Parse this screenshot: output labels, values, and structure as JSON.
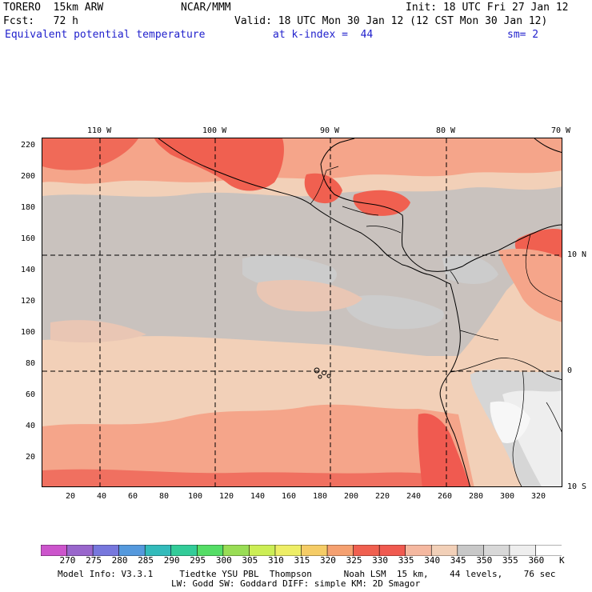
{
  "header": {
    "model": "TORERO  15km ARW",
    "center": "NCAR/MMM",
    "init": "Init: 18 UTC Fri 27 Jan 12",
    "fcst": "Fcst:   72 h",
    "valid": "Valid: 18 UTC Mon 30 Jan 12 (12 CST Mon 30 Jan 12)",
    "field": "Equivalent potential temperature",
    "level": "at k-index =  44",
    "smooth": "sm= 2"
  },
  "axes": {
    "top_lon_labels": [
      "110 W",
      "100 W",
      "90 W",
      "80 W",
      "70 W"
    ],
    "left_y_labels": [
      "220",
      "200",
      "180",
      "160",
      "140",
      "120",
      "100",
      "80",
      "60",
      "40",
      "20"
    ],
    "bottom_x_labels": [
      "20",
      "40",
      "60",
      "80",
      "100",
      "120",
      "140",
      "160",
      "180",
      "200",
      "220",
      "240",
      "260",
      "280",
      "300",
      "320"
    ],
    "right_lat_labels": [
      "10 N",
      "0",
      "10 S"
    ]
  },
  "colorbar": {
    "unit": "K",
    "labels": [
      "270",
      "275",
      "280",
      "285",
      "290",
      "295",
      "300",
      "305",
      "310",
      "315",
      "320",
      "325",
      "330",
      "335",
      "340",
      "345",
      "350",
      "355",
      "360"
    ],
    "colors": [
      "#cc55cc",
      "#9966cc",
      "#7777dd",
      "#5599dd",
      "#33bbbb",
      "#33cc99",
      "#55dd66",
      "#99dd55",
      "#ccee55",
      "#eeee66",
      "#f5cc66",
      "#f5a070",
      "#f06050",
      "#f05a50",
      "#f5b8a0",
      "#f2d0b8",
      "#c8c8c8",
      "#d8d8d8",
      "#eeeeee",
      "#ffffff"
    ]
  },
  "footer": {
    "line1": "Model Info: V3.3.1     Tiedtke YSU PBL  Thompson      Noah LSM  15 km,    44 levels,    76 sec",
    "line2": "LW: Godd SW: Goddard DIFF: simple KM: 2D Smagor"
  }
}
